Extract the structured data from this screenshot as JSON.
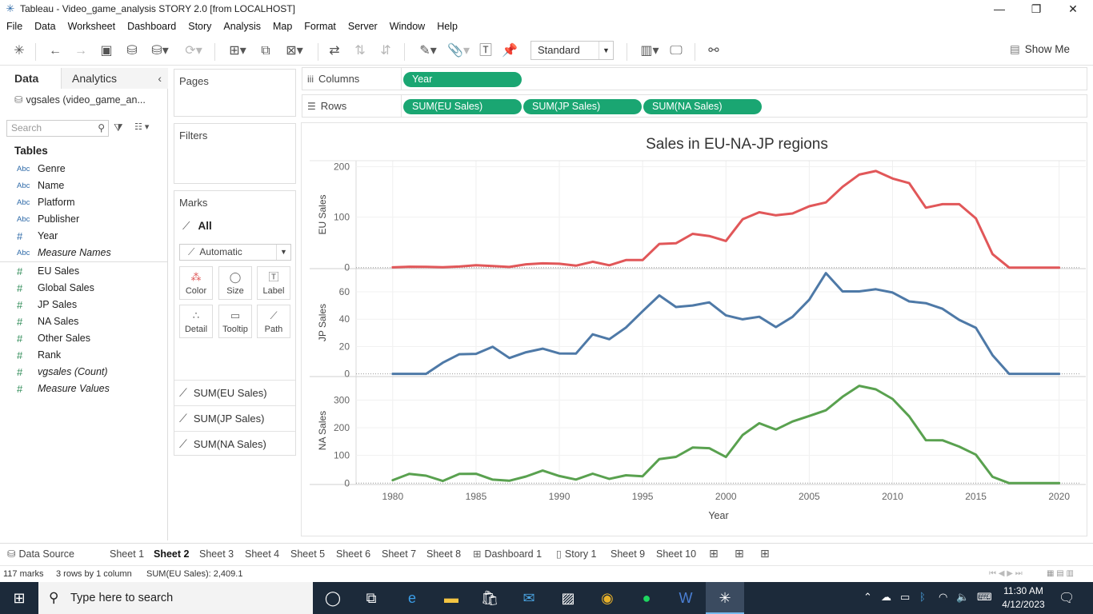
{
  "window": {
    "title": "Tableau - Video_game_analysis STORY 2.0 [from LOCALHOST]"
  },
  "menu": [
    "File",
    "Data",
    "Worksheet",
    "Dashboard",
    "Story",
    "Analysis",
    "Map",
    "Format",
    "Server",
    "Window",
    "Help"
  ],
  "toolbar": {
    "fit": "Standard",
    "show_me": "Show Me"
  },
  "datapane": {
    "tabs": {
      "data": "Data",
      "analytics": "Analytics"
    },
    "datasource": "vgsales (video_game_an...",
    "search_placeholder": "Search",
    "tables_label": "Tables",
    "dimensions": [
      {
        "type": "Abc",
        "name": "Genre"
      },
      {
        "type": "Abc",
        "name": "Name"
      },
      {
        "type": "Abc",
        "name": "Platform"
      },
      {
        "type": "Abc",
        "name": "Publisher"
      },
      {
        "type": "#",
        "name": "Year"
      },
      {
        "type": "Abc",
        "name": "Measure Names"
      }
    ],
    "measures": [
      {
        "type": "#",
        "name": "EU Sales"
      },
      {
        "type": "#",
        "name": "Global Sales"
      },
      {
        "type": "#",
        "name": "JP Sales"
      },
      {
        "type": "#",
        "name": "NA Sales"
      },
      {
        "type": "#",
        "name": "Other Sales"
      },
      {
        "type": "#",
        "name": "Rank"
      },
      {
        "type": "#",
        "name": "vgsales (Count)"
      },
      {
        "type": "#",
        "name": "Measure Values"
      }
    ]
  },
  "cards": {
    "pages": "Pages",
    "filters": "Filters",
    "marks": "Marks",
    "marks_all": "All",
    "mark_type": "Automatic",
    "mark_buttons": [
      "Color",
      "Size",
      "Label",
      "Detail",
      "Tooltip",
      "Path"
    ],
    "measure_pills": [
      "SUM(EU Sales)",
      "SUM(JP Sales)",
      "SUM(NA Sales)"
    ]
  },
  "shelves": {
    "columns_label": "Columns",
    "rows_label": "Rows",
    "columns": [
      "Year"
    ],
    "rows": [
      "SUM(EU Sales)",
      "SUM(JP Sales)",
      "SUM(NA Sales)"
    ]
  },
  "sheet_tabs": [
    "Data Source",
    "Sheet 1",
    "Sheet 2",
    "Sheet 3",
    "Sheet 4",
    "Sheet 5",
    "Sheet 6",
    "Sheet 7",
    "Sheet 8",
    "Dashboard 1",
    "Story 1",
    "Sheet 9",
    "Sheet 10"
  ],
  "active_sheet": "Sheet 2",
  "status": {
    "marks": "117 marks",
    "shape": "3 rows by 1 column",
    "sum": "SUM(EU Sales): 2,409.1"
  },
  "taskbar": {
    "search": "Type here to search",
    "time": "11:30 AM",
    "date": "4/12/2023"
  },
  "chart_data": {
    "type": "line",
    "title": "Sales in EU-NA-JP regions",
    "xlabel": "Year",
    "x": [
      1980,
      1981,
      1982,
      1983,
      1984,
      1985,
      1986,
      1987,
      1988,
      1989,
      1990,
      1991,
      1992,
      1993,
      1994,
      1995,
      1996,
      1997,
      1998,
      1999,
      2000,
      2001,
      2002,
      2003,
      2004,
      2005,
      2006,
      2007,
      2008,
      2009,
      2010,
      2011,
      2012,
      2013,
      2014,
      2015,
      2016,
      2017,
      2018,
      2019,
      2020
    ],
    "xticks": [
      1980,
      1985,
      1990,
      1995,
      2000,
      2005,
      2010,
      2015,
      2020
    ],
    "panes": [
      {
        "name": "EU Sales",
        "ylabel": "EU Sales",
        "color": "#e15759",
        "yticks": [
          0,
          100,
          200
        ],
        "ylim": [
          -2,
          212
        ],
        "values": [
          0.5,
          1.8,
          1.6,
          0.8,
          2.1,
          4.7,
          3,
          1.4,
          6.6,
          8.4,
          7.6,
          3.9,
          11.7,
          4.7,
          14.9,
          14.9,
          47,
          48.3,
          66.9,
          62.7,
          52.8,
          95.8,
          109.7,
          103.8,
          107.3,
          121.6,
          129.2,
          160.2,
          184.4,
          191.6,
          176.6,
          167.4,
          118.8,
          125.8,
          125.7,
          97.7,
          26.8,
          0,
          0,
          0,
          0
        ]
      },
      {
        "name": "JP Sales",
        "ylabel": "JP Sales",
        "color": "#4e79a7",
        "yticks": [
          0,
          20,
          40,
          60
        ],
        "ylim": [
          -2,
          77
        ],
        "values": [
          0,
          0,
          0,
          8.1,
          14.3,
          14.6,
          19.8,
          11.6,
          15.8,
          18.4,
          14.9,
          14.8,
          28.9,
          25.3,
          33.9,
          45.8,
          57.4,
          48.9,
          50,
          52.3,
          42.8,
          39.9,
          41.8,
          34.2,
          41.7,
          54.3,
          73.7,
          60.3,
          60.3,
          61.9,
          59.5,
          53,
          51.7,
          47.6,
          39.5,
          33.7,
          13.7,
          0,
          0,
          0,
          0
        ]
      },
      {
        "name": "NA Sales",
        "ylabel": "NA Sales",
        "color": "#59a14f",
        "yticks": [
          0,
          100,
          200,
          300
        ],
        "ylim": [
          -5,
          385
        ],
        "values": [
          10.6,
          33.4,
          26.9,
          7.8,
          33.3,
          33.7,
          12.5,
          8.5,
          23.9,
          45.2,
          25.5,
          12.8,
          33.9,
          15.1,
          28.2,
          24.8,
          86.8,
          94.8,
          128.4,
          126.1,
          94.5,
          173.9,
          216.2,
          193.6,
          222.6,
          242.6,
          263.1,
          312,
          351.4,
          338.9,
          304.2,
          241.2,
          154.9,
          154.8,
          131.9,
          102.8,
          22.7,
          0,
          0,
          0,
          0
        ]
      }
    ]
  }
}
